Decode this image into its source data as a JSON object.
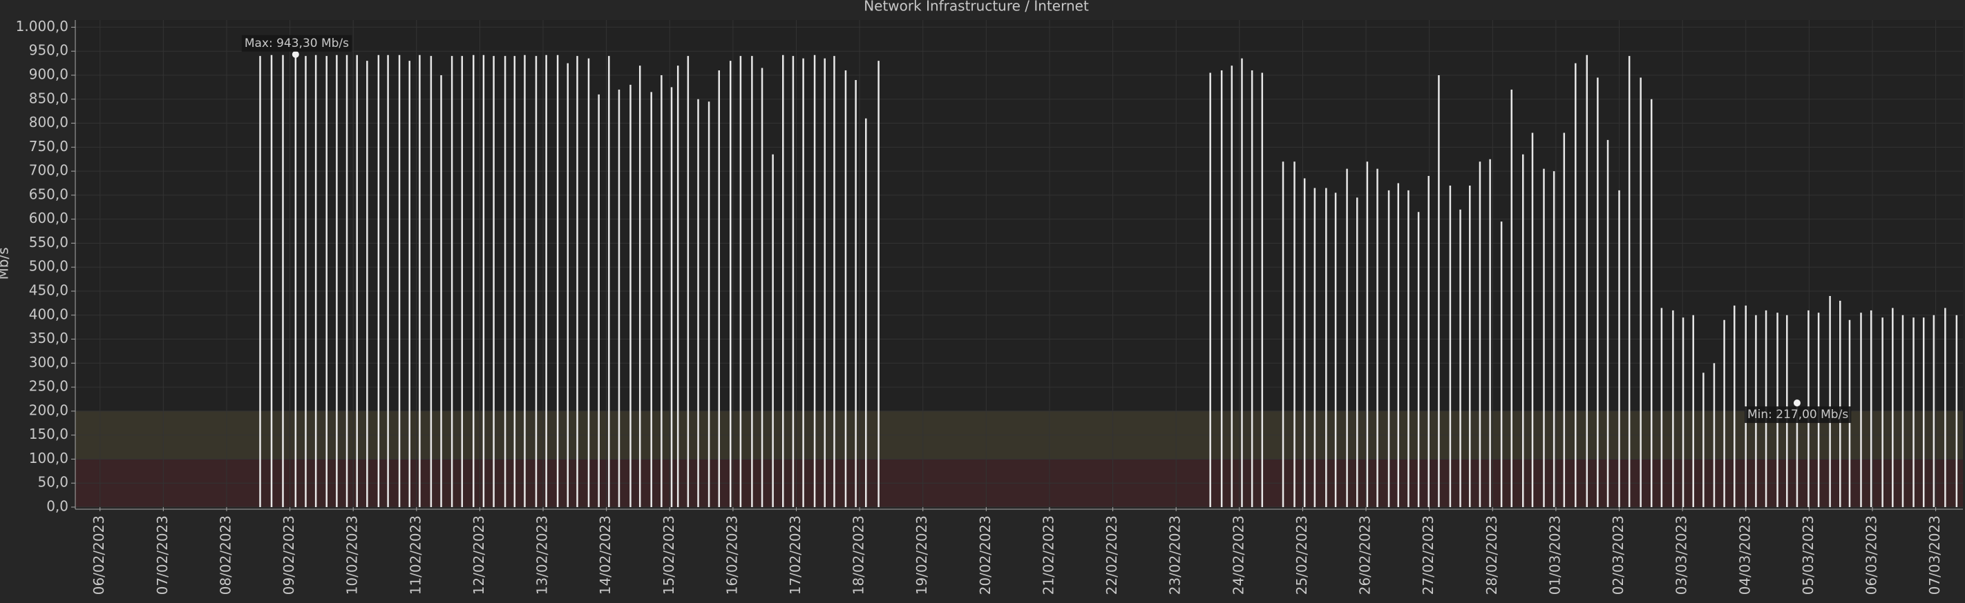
{
  "chart_data": {
    "type": "stem",
    "title": "Network Infrastructure / Internet",
    "y_label": "Mb/s",
    "x": [
      2.53,
      2.71,
      2.89,
      3.09,
      3.25,
      3.41,
      3.58,
      3.74,
      3.9,
      4.06,
      4.22,
      4.4,
      4.55,
      4.73,
      4.89,
      5.05,
      5.23,
      5.39,
      5.56,
      5.72,
      5.9,
      6.06,
      6.22,
      6.4,
      6.55,
      6.71,
      6.89,
      7.05,
      7.23,
      7.39,
      7.54,
      7.72,
      7.88,
      8.04,
      8.2,
      8.38,
      8.53,
      8.71,
      8.87,
      9.03,
      9.13,
      9.29,
      9.45,
      9.62,
      9.78,
      9.96,
      10.12,
      10.3,
      10.46,
      10.63,
      10.79,
      10.95,
      11.11,
      11.29,
      11.45,
      11.6,
      11.78,
      11.94,
      12.1,
      12.3,
      17.54,
      17.72,
      17.88,
      18.04,
      18.2,
      18.36,
      18.69,
      18.87,
      19.03,
      19.19,
      19.37,
      19.52,
      19.7,
      19.86,
      20.02,
      20.18,
      20.36,
      20.51,
      20.67,
      20.83,
      20.99,
      21.15,
      21.33,
      21.49,
      21.64,
      21.8,
      21.96,
      22.14,
      22.3,
      22.48,
      22.63,
      22.81,
      22.97,
      23.13,
      23.31,
      23.49,
      23.66,
      23.82,
      24.0,
      24.16,
      24.34,
      24.51,
      24.67,
      24.85,
      25.01,
      25.17,
      25.33,
      25.5,
      25.66,
      25.82,
      26.0,
      26.16,
      26.32,
      26.5,
      26.65,
      26.81,
      26.99,
      27.15,
      27.33,
      27.49,
      27.64,
      27.82,
      27.98,
      28.16,
      28.32,
      28.48,
      28.65,
      28.81,
      28.97,
      29.15,
      29.33
    ],
    "values": [
      940,
      942,
      942,
      943.3,
      940,
      942,
      940,
      942,
      942,
      942,
      930,
      942,
      942,
      942,
      930,
      942,
      940,
      900,
      940,
      940,
      942,
      942,
      940,
      940,
      940,
      942,
      940,
      942,
      942,
      925,
      940,
      935,
      860,
      940,
      870,
      880,
      920,
      865,
      900,
      875,
      920,
      940,
      850,
      845,
      910,
      930,
      940,
      940,
      915,
      735,
      942,
      940,
      935,
      942,
      935,
      940,
      910,
      890,
      810,
      930,
      905,
      910,
      920,
      935,
      910,
      905,
      720,
      720,
      685,
      665,
      665,
      655,
      705,
      645,
      720,
      705,
      660,
      675,
      660,
      615,
      690,
      900,
      670,
      620,
      670,
      720,
      725,
      595,
      870,
      735,
      780,
      705,
      700,
      780,
      925,
      942,
      895,
      765,
      660,
      940,
      895,
      850,
      415,
      410,
      395,
      400,
      280,
      300,
      390,
      420,
      420,
      400,
      410,
      405,
      400,
      217,
      410,
      405,
      440,
      430,
      390,
      405,
      410,
      395,
      415,
      400,
      395,
      395,
      400,
      415,
      400
    ],
    "color": "#e8e8e8",
    "xlim": [
      -0.39,
      29.43
    ],
    "xticks": [
      {
        "value": 0,
        "label": "06/02/2023"
      },
      {
        "value": 1,
        "label": "07/02/2023"
      },
      {
        "value": 2,
        "label": "08/02/2023"
      },
      {
        "value": 3,
        "label": "09/02/2023"
      },
      {
        "value": 4,
        "label": "10/02/2023"
      },
      {
        "value": 5,
        "label": "11/02/2023"
      },
      {
        "value": 6,
        "label": "12/02/2023"
      },
      {
        "value": 7,
        "label": "13/02/2023"
      },
      {
        "value": 8,
        "label": "14/02/2023"
      },
      {
        "value": 9,
        "label": "15/02/2023"
      },
      {
        "value": 10,
        "label": "16/02/2023"
      },
      {
        "value": 11,
        "label": "17/02/2023"
      },
      {
        "value": 12,
        "label": "18/02/2023"
      },
      {
        "value": 13,
        "label": "19/02/2023"
      },
      {
        "value": 14,
        "label": "20/02/2023"
      },
      {
        "value": 15,
        "label": "21/02/2023"
      },
      {
        "value": 16,
        "label": "22/02/2023"
      },
      {
        "value": 17,
        "label": "23/02/2023"
      },
      {
        "value": 18,
        "label": "24/02/2023"
      },
      {
        "value": 19,
        "label": "25/02/2023"
      },
      {
        "value": 20,
        "label": "26/02/2023"
      },
      {
        "value": 21,
        "label": "27/02/2023"
      },
      {
        "value": 22,
        "label": "28/02/2023"
      },
      {
        "value": 23,
        "label": "01/03/2023"
      },
      {
        "value": 24,
        "label": "02/03/2023"
      },
      {
        "value": 25,
        "label": "03/03/2023"
      },
      {
        "value": 26,
        "label": "04/03/2023"
      },
      {
        "value": 27,
        "label": "05/03/2023"
      },
      {
        "value": 28,
        "label": "06/03/2023"
      },
      {
        "value": 29,
        "label": "07/03/2023"
      }
    ],
    "ylim": [
      0,
      1015
    ],
    "yticks": [
      {
        "value": 0,
        "label": "0,0"
      },
      {
        "value": 50,
        "label": "50,0"
      },
      {
        "value": 100,
        "label": "100,0"
      },
      {
        "value": 150,
        "label": "150,0"
      },
      {
        "value": 200,
        "label": "200,0"
      },
      {
        "value": 250,
        "label": "250,0"
      },
      {
        "value": 300,
        "label": "300,0"
      },
      {
        "value": 350,
        "label": "350,0"
      },
      {
        "value": 400,
        "label": "400,0"
      },
      {
        "value": 450,
        "label": "450,0"
      },
      {
        "value": 500,
        "label": "500,0"
      },
      {
        "value": 550,
        "label": "550,0"
      },
      {
        "value": 600,
        "label": "600,0"
      },
      {
        "value": 650,
        "label": "650,0"
      },
      {
        "value": 700,
        "label": "700,0"
      },
      {
        "value": 750,
        "label": "750,0"
      },
      {
        "value": 800,
        "label": "800,0"
      },
      {
        "value": 850,
        "label": "850,0"
      },
      {
        "value": 900,
        "label": "900,0"
      },
      {
        "value": 950,
        "label": "950,0"
      },
      {
        "value": 1000,
        "label": "1.000,0"
      }
    ],
    "grid": true,
    "bands": [
      {
        "from": 0,
        "to": 100,
        "color": "#3a2426"
      },
      {
        "from": 100,
        "to": 200,
        "color": "#38352a"
      }
    ],
    "annotations": [
      {
        "text": "Max: 943,30 Mb/s",
        "x": 3.09,
        "y": 943.3
      },
      {
        "text": "Min: 217,00 Mb/s",
        "x": 26.81,
        "y": 217
      }
    ]
  }
}
